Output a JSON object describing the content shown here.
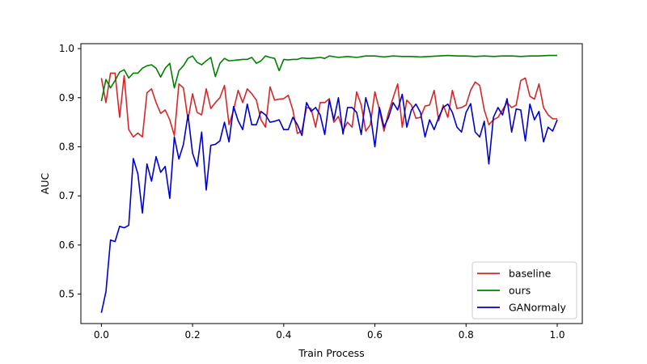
{
  "chart_data": {
    "type": "line",
    "xlabel": "Train Process",
    "ylabel": "AUC",
    "xlim": [
      -0.045,
      1.055
    ],
    "ylim": [
      0.44,
      1.01
    ],
    "x_ticks": [
      0.0,
      0.2,
      0.4,
      0.6,
      0.8,
      1.0
    ],
    "x_tick_labels": [
      "0.0",
      "0.2",
      "0.4",
      "0.6",
      "0.8",
      "1.0"
    ],
    "y_ticks": [
      0.5,
      0.6,
      0.7,
      0.8,
      0.9,
      1.0
    ],
    "y_tick_labels": [
      "0.5",
      "0.6",
      "0.7",
      "0.8",
      "0.9",
      "1.0"
    ],
    "grid": false,
    "legend_position": "lower-right",
    "series": [
      {
        "name": "baseline",
        "color": "#d62728",
        "x": [
          0.0,
          0.01,
          0.02,
          0.03,
          0.04,
          0.05,
          0.06,
          0.07,
          0.08,
          0.09,
          0.1,
          0.11,
          0.12,
          0.13,
          0.14,
          0.15,
          0.16,
          0.17,
          0.18,
          0.19,
          0.2,
          0.21,
          0.22,
          0.23,
          0.24,
          0.25,
          0.26,
          0.27,
          0.28,
          0.29,
          0.3,
          0.31,
          0.32,
          0.33,
          0.34,
          0.35,
          0.36,
          0.37,
          0.38,
          0.39,
          0.4,
          0.41,
          0.42,
          0.43,
          0.44,
          0.45,
          0.46,
          0.47,
          0.48,
          0.49,
          0.5,
          0.51,
          0.52,
          0.53,
          0.54,
          0.55,
          0.56,
          0.57,
          0.58,
          0.59,
          0.6,
          0.61,
          0.62,
          0.63,
          0.64,
          0.65,
          0.66,
          0.67,
          0.68,
          0.69,
          0.7,
          0.71,
          0.72,
          0.73,
          0.74,
          0.75,
          0.76,
          0.77,
          0.78,
          0.79,
          0.8,
          0.81,
          0.82,
          0.83,
          0.84,
          0.85,
          0.86,
          0.87,
          0.88,
          0.89,
          0.9,
          0.91,
          0.92,
          0.93,
          0.94,
          0.95,
          0.96,
          0.97,
          0.98,
          0.99,
          1.0
        ],
        "y": [
          0.94,
          0.89,
          0.95,
          0.95,
          0.86,
          0.945,
          0.835,
          0.82,
          0.828,
          0.82,
          0.91,
          0.918,
          0.89,
          0.868,
          0.875,
          0.855,
          0.823,
          0.928,
          0.92,
          0.855,
          0.908,
          0.87,
          0.865,
          0.918,
          0.878,
          0.89,
          0.9,
          0.925,
          0.845,
          0.875,
          0.915,
          0.89,
          0.918,
          0.908,
          0.895,
          0.855,
          0.84,
          0.922,
          0.895,
          0.897,
          0.898,
          0.905,
          0.875,
          0.827,
          0.833,
          0.88,
          0.878,
          0.84,
          0.89,
          0.89,
          0.898,
          0.85,
          0.862,
          0.833,
          0.85,
          0.84,
          0.912,
          0.885,
          0.832,
          0.845,
          0.912,
          0.875,
          0.832,
          0.87,
          0.9,
          0.928,
          0.84,
          0.895,
          0.885,
          0.858,
          0.86,
          0.883,
          0.885,
          0.915,
          0.853,
          0.885,
          0.86,
          0.915,
          0.878,
          0.88,
          0.885,
          0.915,
          0.932,
          0.925,
          0.875,
          0.845,
          0.855,
          0.86,
          0.875,
          0.89,
          0.88,
          0.885,
          0.935,
          0.94,
          0.903,
          0.897,
          0.928,
          0.88,
          0.865,
          0.857,
          0.857
        ]
      },
      {
        "name": "ours",
        "color": "#008000",
        "x": [
          0.0,
          0.01,
          0.02,
          0.03,
          0.04,
          0.05,
          0.06,
          0.07,
          0.08,
          0.09,
          0.1,
          0.11,
          0.12,
          0.13,
          0.14,
          0.15,
          0.16,
          0.17,
          0.18,
          0.19,
          0.2,
          0.21,
          0.22,
          0.23,
          0.24,
          0.25,
          0.26,
          0.27,
          0.28,
          0.29,
          0.3,
          0.31,
          0.32,
          0.33,
          0.34,
          0.35,
          0.36,
          0.37,
          0.38,
          0.39,
          0.4,
          0.41,
          0.42,
          0.43,
          0.44,
          0.45,
          0.46,
          0.47,
          0.48,
          0.49,
          0.5,
          0.52,
          0.54,
          0.56,
          0.58,
          0.6,
          0.62,
          0.64,
          0.66,
          0.68,
          0.7,
          0.72,
          0.74,
          0.76,
          0.78,
          0.8,
          0.82,
          0.84,
          0.86,
          0.88,
          0.9,
          0.92,
          0.94,
          0.96,
          0.98,
          1.0
        ],
        "y": [
          0.893,
          0.937,
          0.92,
          0.935,
          0.952,
          0.957,
          0.94,
          0.95,
          0.95,
          0.96,
          0.965,
          0.967,
          0.96,
          0.942,
          0.96,
          0.97,
          0.92,
          0.955,
          0.965,
          0.98,
          0.985,
          0.972,
          0.967,
          0.975,
          0.982,
          0.943,
          0.97,
          0.98,
          0.975,
          0.976,
          0.977,
          0.978,
          0.978,
          0.982,
          0.97,
          0.975,
          0.985,
          0.982,
          0.98,
          0.955,
          0.978,
          0.977,
          0.978,
          0.978,
          0.981,
          0.98,
          0.98,
          0.981,
          0.982,
          0.98,
          0.985,
          0.982,
          0.984,
          0.982,
          0.985,
          0.985,
          0.983,
          0.985,
          0.984,
          0.984,
          0.983,
          0.984,
          0.985,
          0.986,
          0.985,
          0.985,
          0.984,
          0.985,
          0.984,
          0.985,
          0.985,
          0.984,
          0.985,
          0.985,
          0.986,
          0.986
        ]
      },
      {
        "name": "GANormaly",
        "color": "#0000cc",
        "x": [
          0.0,
          0.01,
          0.02,
          0.03,
          0.04,
          0.05,
          0.06,
          0.07,
          0.08,
          0.09,
          0.1,
          0.11,
          0.12,
          0.13,
          0.14,
          0.15,
          0.16,
          0.17,
          0.18,
          0.19,
          0.2,
          0.21,
          0.22,
          0.23,
          0.24,
          0.25,
          0.26,
          0.27,
          0.28,
          0.29,
          0.3,
          0.31,
          0.32,
          0.33,
          0.34,
          0.35,
          0.36,
          0.37,
          0.38,
          0.39,
          0.4,
          0.41,
          0.42,
          0.43,
          0.44,
          0.45,
          0.46,
          0.47,
          0.48,
          0.49,
          0.5,
          0.51,
          0.52,
          0.53,
          0.54,
          0.55,
          0.56,
          0.57,
          0.58,
          0.59,
          0.6,
          0.61,
          0.62,
          0.63,
          0.64,
          0.65,
          0.66,
          0.67,
          0.68,
          0.69,
          0.7,
          0.71,
          0.72,
          0.73,
          0.74,
          0.75,
          0.76,
          0.77,
          0.78,
          0.79,
          0.8,
          0.81,
          0.82,
          0.83,
          0.84,
          0.85,
          0.86,
          0.87,
          0.88,
          0.89,
          0.9,
          0.91,
          0.92,
          0.93,
          0.94,
          0.95,
          0.96,
          0.97,
          0.98,
          0.99,
          1.0
        ],
        "y": [
          0.462,
          0.505,
          0.61,
          0.607,
          0.638,
          0.635,
          0.64,
          0.776,
          0.745,
          0.665,
          0.765,
          0.73,
          0.78,
          0.748,
          0.76,
          0.695,
          0.82,
          0.775,
          0.805,
          0.865,
          0.787,
          0.76,
          0.83,
          0.712,
          0.803,
          0.805,
          0.812,
          0.85,
          0.81,
          0.882,
          0.853,
          0.835,
          0.887,
          0.845,
          0.845,
          0.872,
          0.865,
          0.85,
          0.852,
          0.855,
          0.835,
          0.835,
          0.86,
          0.845,
          0.823,
          0.89,
          0.872,
          0.88,
          0.865,
          0.825,
          0.895,
          0.855,
          0.9,
          0.826,
          0.88,
          0.88,
          0.87,
          0.825,
          0.9,
          0.867,
          0.8,
          0.88,
          0.84,
          0.86,
          0.89,
          0.875,
          0.907,
          0.84,
          0.875,
          0.887,
          0.87,
          0.82,
          0.855,
          0.835,
          0.86,
          0.88,
          0.887,
          0.87,
          0.84,
          0.83,
          0.87,
          0.888,
          0.83,
          0.82,
          0.852,
          0.765,
          0.86,
          0.88,
          0.865,
          0.898,
          0.83,
          0.877,
          0.875,
          0.812,
          0.887,
          0.855,
          0.872,
          0.81,
          0.84,
          0.832,
          0.855
        ]
      }
    ]
  }
}
